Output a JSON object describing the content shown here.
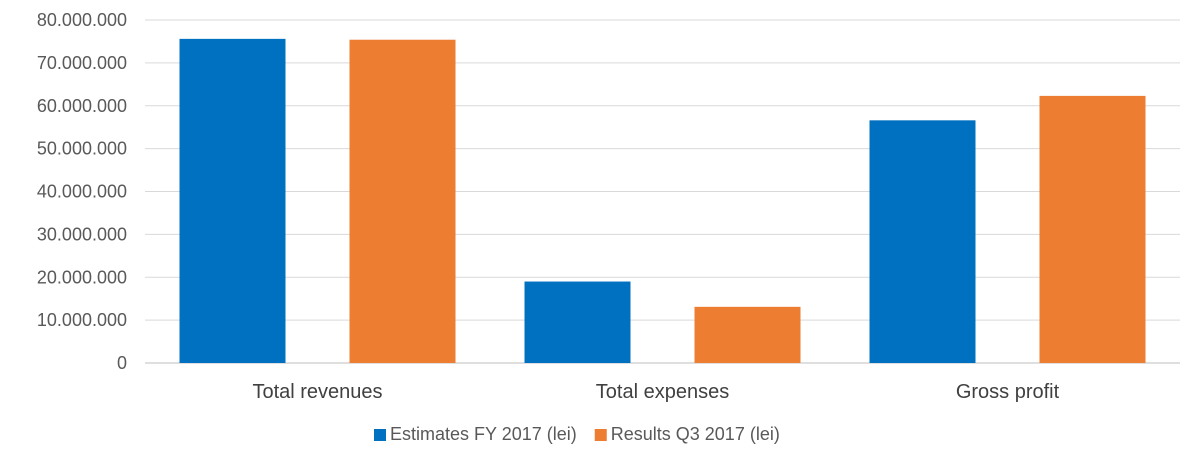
{
  "chart_data": {
    "type": "bar",
    "title": "",
    "xlabel": "",
    "ylabel": "",
    "categories": [
      "Total revenues",
      "Total expenses",
      "Gross profit"
    ],
    "series": [
      {
        "name": "Estimates FY 2017 (lei)",
        "color": "#0070C0",
        "values": [
          75600000,
          19000000,
          56600000
        ]
      },
      {
        "name": "Results Q3 2017 (lei)",
        "color": "#ED7D31",
        "values": [
          75400000,
          13100000,
          62300000
        ]
      }
    ],
    "ylim": [
      0,
      80000000
    ],
    "yticks": [
      "0",
      "10.000.000",
      "20.000.000",
      "30.000.000",
      "40.000.000",
      "50.000.000",
      "60.000.000",
      "70.000.000",
      "80.000.000"
    ],
    "grid": true,
    "legend_position": "bottom"
  }
}
